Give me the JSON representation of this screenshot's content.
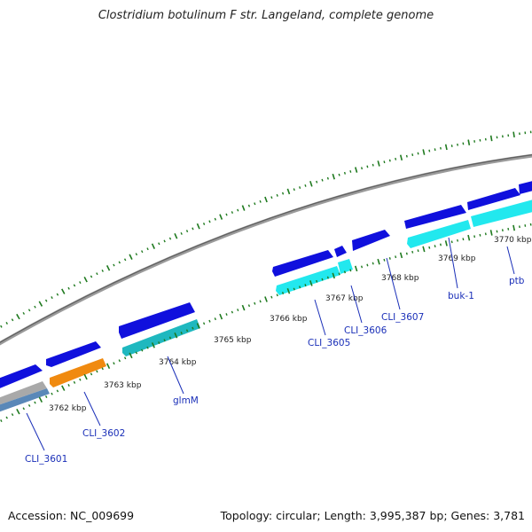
{
  "title": "Clostridium botulinum F str. Langeland, complete genome",
  "footer": {
    "accession": "Accession: NC_009699",
    "summary": "Topology: circular; Length: 3,995,387 bp; Genes: 3,781"
  },
  "colors": {
    "backbone": "#8a8a8a",
    "cds_forward": "#1010dd",
    "ruler": "#1f7a1f",
    "label": "#1a2fb8",
    "gene_cyan": "#22e8ee",
    "gene_teal": "#1fb8bf",
    "gene_orange": "#f08a10",
    "gene_grey": "#a9a9a9",
    "gene_steel": "#5a88b8"
  },
  "ticks": [
    "3762 kbp",
    "3763 kbp",
    "3764 kbp",
    "3765 kbp",
    "3766 kbp",
    "3767 kbp",
    "3768 kbp",
    "3769 kbp",
    "3770 kbp"
  ],
  "gene_labels": [
    "CLI_3601",
    "CLI_3602",
    "glmM",
    "CLI_3605",
    "CLI_3606",
    "CLI_3607",
    "buk-1",
    "ptb"
  ]
}
